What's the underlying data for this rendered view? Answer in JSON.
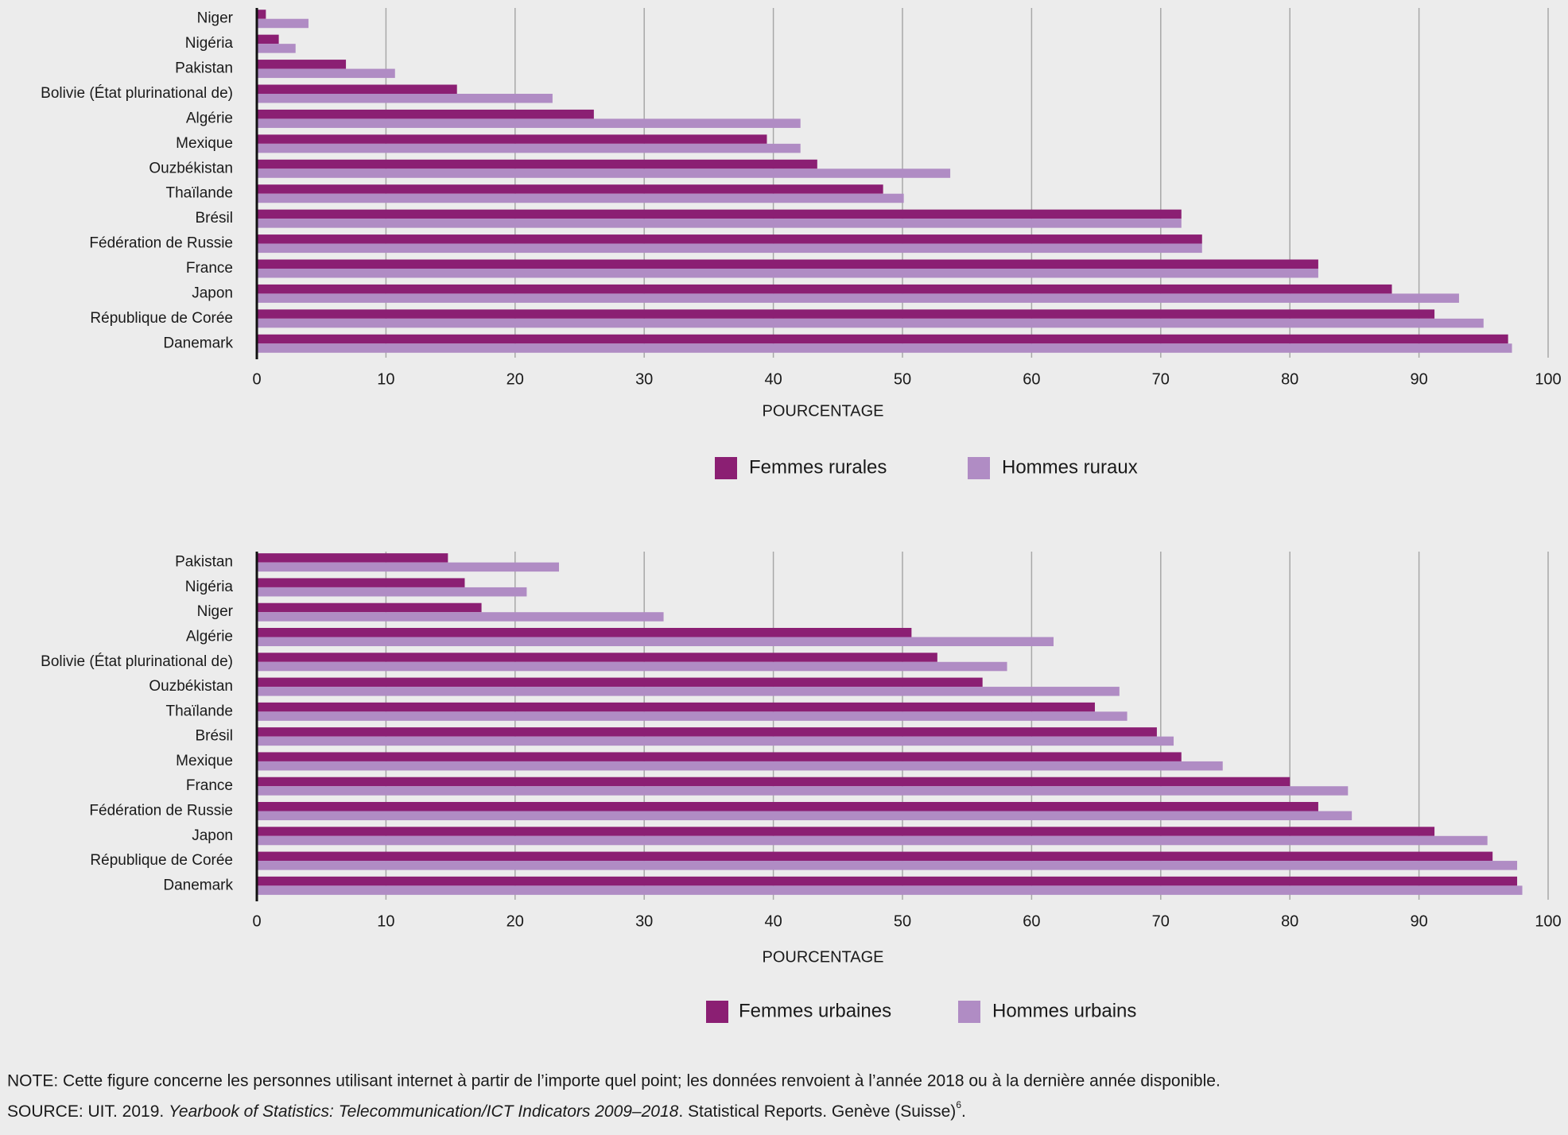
{
  "chart_data": [
    {
      "type": "bar",
      "orientation": "horizontal",
      "categories": [
        "Niger",
        "Nigéria",
        "Pakistan",
        "Bolivie (État plurinational de)",
        "Algérie",
        "Mexique",
        "Ouzbékistan",
        "Thaïlande",
        "Brésil",
        "Fédération de Russie",
        "France",
        "Japon",
        "République de Corée",
        "Danemark"
      ],
      "series": [
        {
          "name": "Femmes rurales",
          "color": "#8b1f73",
          "values": [
            0.7,
            1.7,
            6.9,
            15.5,
            26.1,
            39.5,
            43.4,
            48.5,
            71.6,
            73.2,
            82.2,
            87.9,
            91.2,
            96.9
          ]
        },
        {
          "name": "Hommes ruraux",
          "color": "#b08cc4",
          "values": [
            4.0,
            3.0,
            10.7,
            22.9,
            42.1,
            42.1,
            53.7,
            50.1,
            71.6,
            73.2,
            82.2,
            93.1,
            95.0,
            97.2
          ]
        }
      ],
      "xlabel": "POURCENTAGE",
      "xlim": [
        0,
        100
      ],
      "xticks": [
        0,
        10,
        20,
        30,
        40,
        50,
        60,
        70,
        80,
        90,
        100
      ],
      "grid": true
    },
    {
      "type": "bar",
      "orientation": "horizontal",
      "categories": [
        "Pakistan",
        "Nigéria",
        "Niger",
        "Algérie",
        "Bolivie (État plurinational de)",
        "Ouzbékistan",
        "Thaïlande",
        "Brésil",
        "Mexique",
        "France",
        "Fédération de Russie",
        "Japon",
        "République de Corée",
        "Danemark"
      ],
      "series": [
        {
          "name": "Femmes urbaines",
          "color": "#8b1f73",
          "values": [
            14.8,
            16.1,
            17.4,
            50.7,
            52.7,
            56.2,
            64.9,
            69.7,
            71.6,
            80.0,
            82.2,
            91.2,
            95.7,
            97.6
          ]
        },
        {
          "name": "Hommes urbains",
          "color": "#b08cc4",
          "values": [
            23.4,
            20.9,
            31.5,
            61.7,
            58.1,
            66.8,
            67.4,
            71.0,
            74.8,
            84.5,
            84.8,
            95.3,
            97.6,
            98.0
          ]
        }
      ],
      "xlabel": "POURCENTAGE",
      "xlim": [
        0,
        100
      ],
      "xticks": [
        0,
        10,
        20,
        30,
        40,
        50,
        60,
        70,
        80,
        90,
        100
      ],
      "grid": true
    }
  ],
  "note": "NOTE: Cette figure concerne les personnes utilisant internet à partir de l’importe quel point; les données renvoient à l’année 2018 ou à la dernière année disponible.",
  "source": [
    "SOURCE: UIT. 2019. ",
    "Yearbook of Statistics: Telecommunication/ICT Indicators 2009–2018",
    ". Statistical Reports. Genève (Suisse)",
    "6",
    "."
  ]
}
